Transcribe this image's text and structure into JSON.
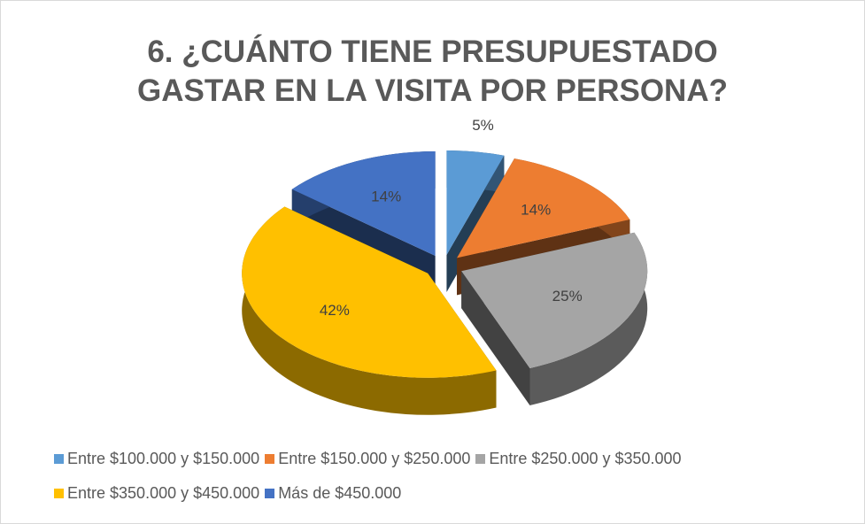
{
  "chart_data": {
    "type": "pie",
    "title": "6. ¿CUÁNTO TIENE PRESUPUESTADO GASTAR EN LA VISITA POR PERSONA?",
    "categories": [
      "Entre $100.000 y $150.000",
      "Entre $150.000 y $250.000",
      "Entre $250.000 y $350.000",
      "Entre $350.000 y $450.000",
      "Más de $450.000"
    ],
    "values": [
      5,
      14,
      25,
      42,
      14
    ],
    "value_labels": [
      "5%",
      "14%",
      "25%",
      "42%",
      "14%"
    ],
    "colors": [
      "#5b9bd5",
      "#ed7d31",
      "#a5a5a5",
      "#ffc000",
      "#4472c4"
    ],
    "legend": "bottom"
  }
}
